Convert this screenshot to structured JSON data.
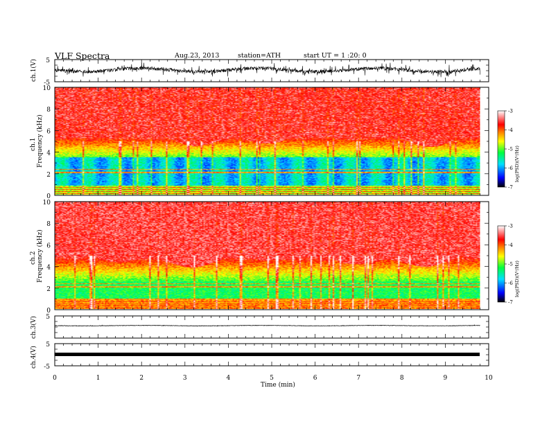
{
  "header": {
    "title": "VLF  Spectra",
    "date": "Aug.23, 2013",
    "station": "station=ATH",
    "start": "start  UT  =   1  :20: 0"
  },
  "colors": {
    "waveform": "#000000",
    "colormap": [
      "#000000",
      "#0000ff",
      "#00e0ff",
      "#00ff40",
      "#ffff00",
      "#ff8000",
      "#ff0000",
      "#ffffff"
    ]
  },
  "chart_data": [
    {
      "type": "line",
      "panel": "ch.1",
      "ylabel": "ch.1(V)",
      "ylim": [
        -5,
        5
      ],
      "y_ticks": [
        "5",
        "-5"
      ],
      "description_values": "broadband waveform, amplitude about ±2.5 V"
    },
    {
      "type": "heatmap",
      "panel": "ch.1 spectrogram",
      "ylabel": "Frequency  (kHz)",
      "channel_label": "ch.1",
      "ylim": [
        0,
        10
      ],
      "y_ticks": [
        "0",
        "2",
        "4",
        "6",
        "8",
        "10"
      ],
      "z_label": "log(PSD)(V²/Hz)",
      "z_ticks": [
        "-3",
        "-4",
        "-5",
        "-6",
        "-7"
      ],
      "zlim": [
        -7,
        -3
      ]
    },
    {
      "type": "heatmap",
      "panel": "ch.2 spectrogram",
      "ylabel": "Frequency  (kHz)",
      "channel_label": "ch.2",
      "ylim": [
        0,
        10
      ],
      "y_ticks": [
        "0",
        "2",
        "4",
        "6",
        "8",
        "10"
      ],
      "z_label": "log(PSD)(V²/Hz)",
      "z_ticks": [
        "-3",
        "-4",
        "-5",
        "-6",
        "-7"
      ],
      "zlim": [
        -7,
        -3
      ]
    },
    {
      "type": "line",
      "panel": "ch.3",
      "ylabel": "ch.3(V)",
      "ylim": [
        -5,
        5
      ],
      "y_ticks": [
        "5"
      ]
    },
    {
      "type": "line",
      "panel": "ch.4",
      "ylabel": "ch.4(V)",
      "ylim": [
        -5,
        5
      ],
      "y_ticks": [
        "5",
        "-5"
      ]
    }
  ],
  "xaxis": {
    "label": "Time  (min)",
    "xlim": [
      0,
      10
    ],
    "ticks": [
      "0",
      "1",
      "2",
      "3",
      "4",
      "5",
      "6",
      "7",
      "8",
      "9",
      "10"
    ],
    "data_end": 9.8
  }
}
